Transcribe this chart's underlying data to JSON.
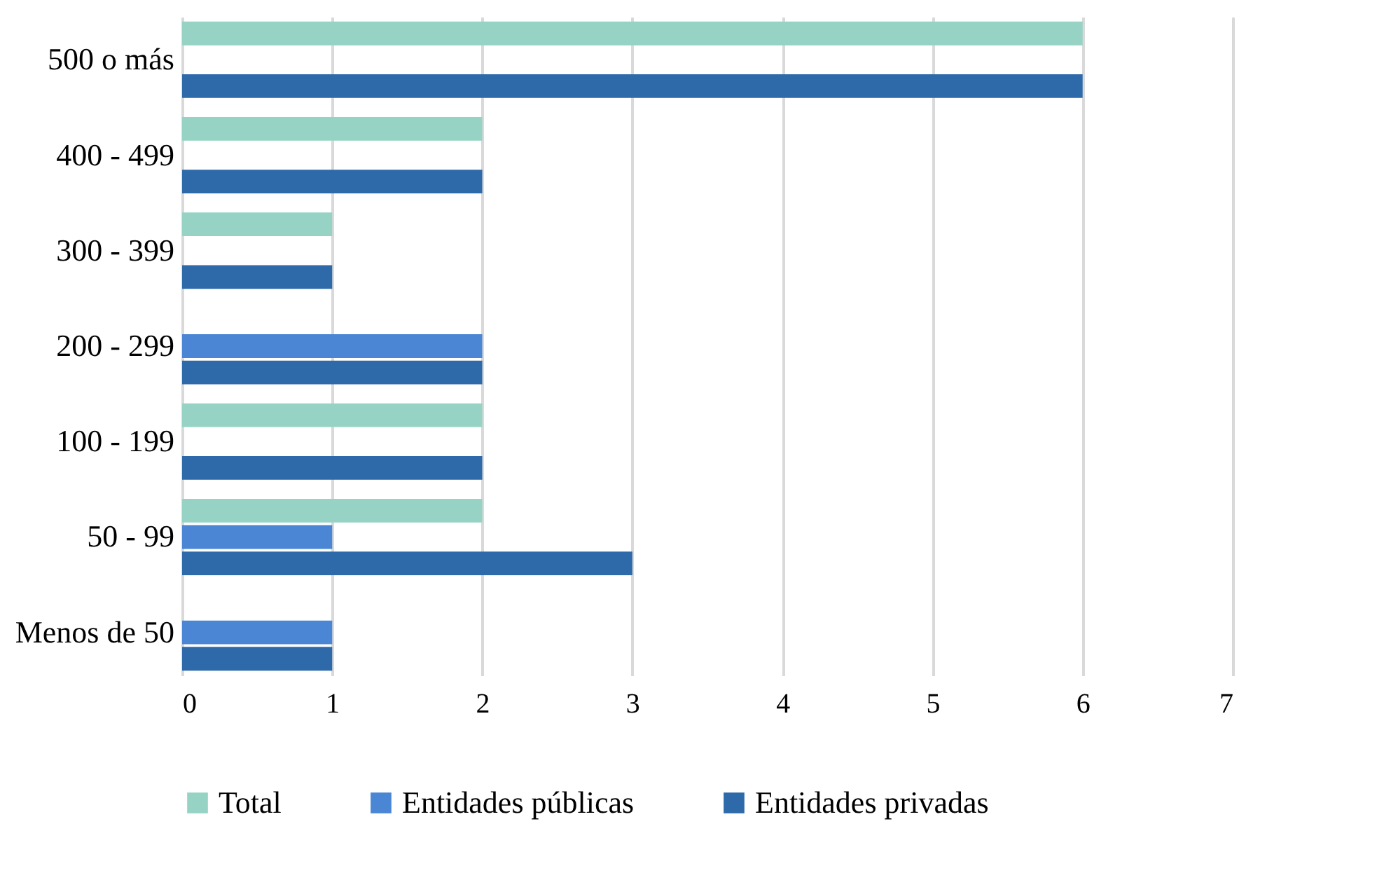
{
  "chart_data": {
    "type": "bar",
    "orientation": "horizontal",
    "categories": [
      "500 o más",
      "400 - 499",
      "300 - 399",
      "200 - 299",
      "100 - 199",
      "50 - 99",
      "Menos de 50"
    ],
    "series": [
      {
        "name": "Total",
        "color": "#96d3c5",
        "values": [
          6,
          2,
          1,
          null,
          2,
          2,
          null
        ]
      },
      {
        "name": "Entidades públicas",
        "color": "#4a86d4",
        "values": [
          null,
          null,
          null,
          2,
          null,
          1,
          1
        ]
      },
      {
        "name": "Entidades privadas",
        "color": "#2e6aa9",
        "values": [
          6,
          2,
          1,
          2,
          2,
          3,
          1
        ]
      }
    ],
    "xlim": [
      0,
      7
    ],
    "xticks": [
      0,
      1,
      2,
      3,
      4,
      5,
      6,
      7
    ],
    "grid": "x",
    "legend": "bottom"
  }
}
